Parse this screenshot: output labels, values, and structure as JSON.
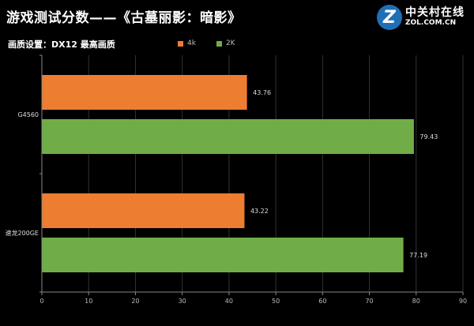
{
  "header": {
    "title": "游戏测试分数——《古墓丽影：暗影》",
    "subtitle": "画质设置：DX12 最高画质"
  },
  "logo": {
    "mark": "Z",
    "cn": "中关村在线",
    "en": "ZOL.COM.CN",
    "color": "#1f6fb8"
  },
  "chart_data": {
    "type": "bar",
    "orientation": "horizontal",
    "title": "游戏测试分数——《古墓丽影：暗影》",
    "subtitle": "画质设置：DX12 最高画质",
    "categories": [
      "G4560",
      "速龙200GE"
    ],
    "series": [
      {
        "name": "4k",
        "color": "#ed7d31",
        "values": [
          43.76,
          43.22
        ]
      },
      {
        "name": "2K",
        "color": "#70ad47",
        "values": [
          79.43,
          77.19
        ]
      }
    ],
    "xlim": [
      0,
      90
    ],
    "xticks": [
      0,
      10,
      20,
      30,
      40,
      50,
      60,
      70,
      80,
      90
    ],
    "grid": true,
    "legend_position": "top"
  }
}
